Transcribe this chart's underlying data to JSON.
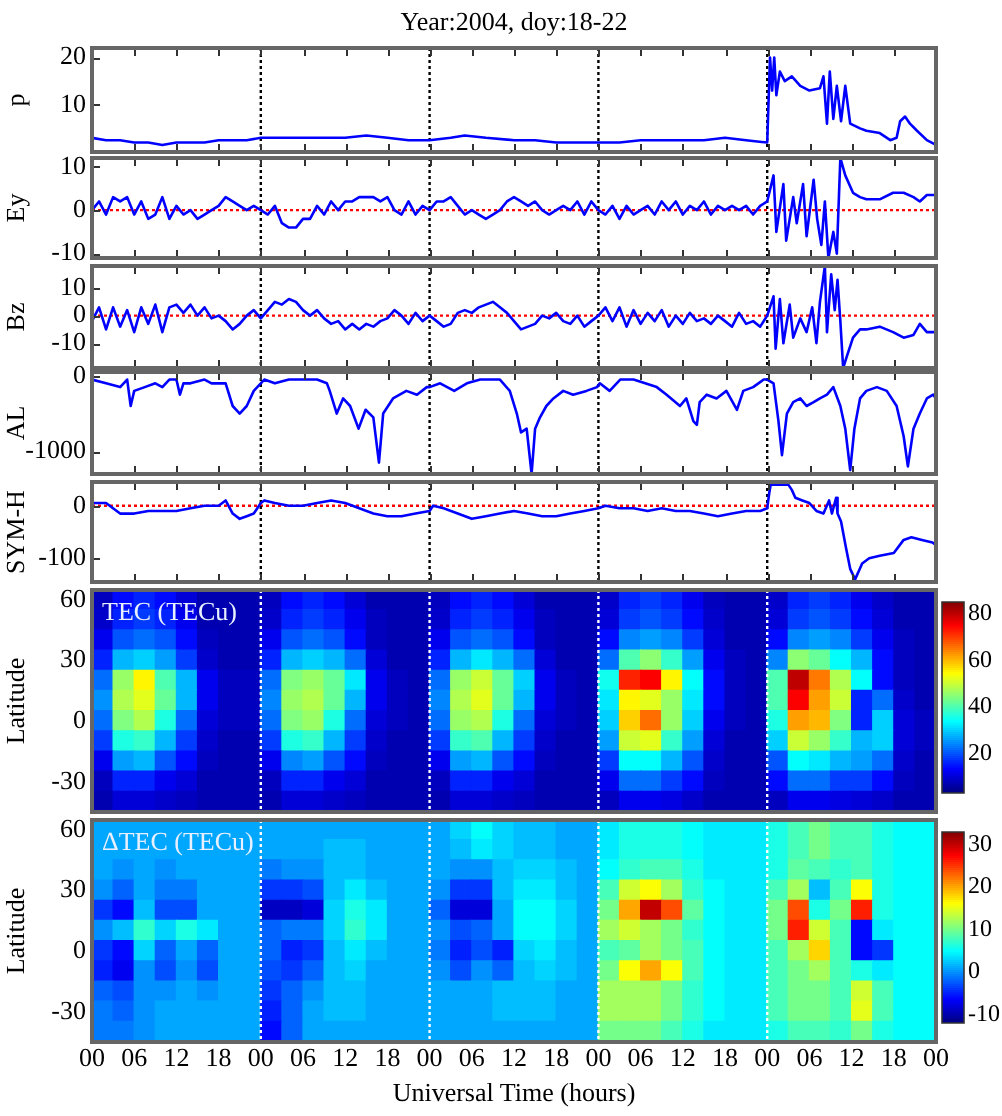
{
  "chart_data": [
    {
      "type": "line",
      "title": "Year:2004, doy:18-22",
      "ylabel": "p",
      "color": "#0000ff",
      "xlim": [
        0,
        120
      ],
      "xticks": [
        0,
        6,
        12,
        18,
        24,
        30,
        36,
        42,
        48,
        54,
        60,
        66,
        72,
        78,
        84,
        90,
        96,
        102,
        108,
        114,
        120
      ],
      "ylim": [
        0,
        22
      ],
      "yticks": [
        10,
        20
      ],
      "tick_labels": "y",
      "x": [
        0,
        2,
        4,
        6,
        8,
        10,
        12,
        14,
        16,
        18,
        20,
        22,
        24,
        27,
        30,
        33,
        36,
        39,
        42,
        45,
        48,
        51,
        53,
        56,
        60,
        63,
        66,
        69,
        72,
        75,
        78,
        81,
        84,
        87,
        90,
        93,
        96,
        96.4,
        96.7,
        97,
        97.3,
        97.8,
        98.5,
        99.5,
        100.7,
        102,
        103.5,
        104,
        104.5,
        104.9,
        105.4,
        105.9,
        106.5,
        107.1,
        107.8,
        109.2,
        110.1,
        112,
        113.5,
        114.4,
        114.9,
        115.6,
        116.3,
        117.3,
        118.7,
        120
      ],
      "values": [
        3,
        2.5,
        2.5,
        2,
        2,
        1.5,
        2,
        2,
        2,
        2.5,
        2.5,
        2.5,
        3,
        3,
        3,
        3,
        3,
        3.5,
        3,
        2.5,
        2.5,
        3,
        3.5,
        3,
        2.5,
        2.5,
        2,
        2,
        2,
        2,
        2.5,
        2.5,
        2.5,
        2.5,
        3,
        2.5,
        2,
        20,
        13,
        20,
        12,
        17,
        15,
        16,
        14,
        13,
        13.5,
        16,
        6,
        17,
        7,
        14,
        6.5,
        14,
        6,
        5,
        4.5,
        4,
        2.5,
        3,
        6.5,
        7.5,
        6,
        4.5,
        2.5,
        1.5
      ],
      "ref_lines": [
        {
          "axis": "x",
          "value": 24,
          "color": "#000000",
          "line_style": "dotted"
        },
        {
          "axis": "x",
          "value": 48,
          "color": "#000000",
          "line_style": "dotted"
        },
        {
          "axis": "x",
          "value": 72,
          "color": "#000000",
          "line_style": "dotted"
        },
        {
          "axis": "x",
          "value": 96,
          "color": "#000000",
          "line_style": "dotted"
        }
      ]
    },
    {
      "type": "line",
      "ylabel": "Ey",
      "color": "#0000ff",
      "xlim": [
        0,
        120
      ],
      "xticks": [
        0,
        6,
        12,
        18,
        24,
        30,
        36,
        42,
        48,
        54,
        60,
        66,
        72,
        78,
        84,
        90,
        96,
        102,
        108,
        114,
        120
      ],
      "ylim": [
        -11,
        12
      ],
      "yticks": [
        -10,
        0,
        10
      ],
      "tick_labels": "y",
      "x": [
        0,
        1,
        2,
        3,
        4,
        5,
        6,
        7,
        8,
        9,
        10,
        11,
        12,
        13,
        14,
        15,
        16,
        17,
        18,
        19,
        20,
        21,
        22,
        23,
        24,
        25,
        26,
        27,
        28,
        29,
        30,
        31,
        32,
        33,
        34,
        35,
        36,
        37,
        38,
        39,
        40,
        41,
        42,
        43,
        44,
        45,
        46,
        47,
        48,
        49,
        50,
        51,
        52,
        53,
        54,
        55,
        56,
        57,
        58,
        59,
        60,
        61,
        62,
        63,
        64,
        65,
        66,
        67,
        68,
        69,
        70,
        71,
        72,
        73,
        74,
        75,
        76,
        77,
        78,
        79,
        80,
        81,
        82,
        83,
        84,
        85,
        86,
        87,
        88,
        89,
        90,
        91,
        92,
        93,
        94,
        95,
        96,
        96.9,
        97.3,
        98.3,
        98.7,
        99.7,
        100.2,
        101.1,
        101.6,
        102.6,
        103.1,
        103.7,
        104.2,
        104.7,
        105.4,
        105.9,
        106.4,
        107.1,
        108.2,
        109.2,
        110.1,
        112,
        113.9,
        115.4,
        116.8,
        117.7,
        118.7,
        119.6,
        120
      ],
      "values": [
        0,
        2,
        -1,
        3,
        2,
        3,
        -1,
        2,
        -2,
        -1,
        3,
        -2,
        1,
        -1,
        0,
        -2,
        -1,
        0,
        1,
        3,
        2,
        1,
        0,
        1,
        0,
        -1,
        1,
        -3,
        -4,
        -4,
        -2,
        -2,
        1,
        -1,
        2,
        0,
        2,
        2,
        3,
        3,
        3,
        2,
        3,
        0,
        -1,
        2,
        -1,
        1,
        0,
        2,
        2,
        3,
        1,
        -1,
        0,
        -1,
        -2,
        -1,
        0,
        2,
        3,
        2,
        1,
        2,
        0,
        -1,
        0,
        1,
        0,
        2,
        -1,
        2,
        0,
        -1,
        1,
        -2,
        1,
        -1,
        0,
        1,
        -1,
        2,
        0,
        2,
        -1,
        1,
        0,
        2,
        -1,
        1,
        0,
        1,
        0,
        1,
        -1,
        1,
        2,
        8,
        -5,
        6,
        -7,
        3,
        -3,
        6,
        -6,
        7,
        -2,
        -8,
        2,
        -11,
        -5,
        -10,
        12,
        8,
        4,
        3,
        2.5,
        2.5,
        4,
        4,
        3,
        2,
        3.5,
        3.5,
        3.5
      ],
      "ref_lines": [
        {
          "axis": "y",
          "value": 0,
          "color": "#ff0000",
          "line_style": "dotted"
        },
        {
          "axis": "x",
          "value": 24,
          "color": "#000000",
          "line_style": "dotted"
        },
        {
          "axis": "x",
          "value": 48,
          "color": "#000000",
          "line_style": "dotted"
        },
        {
          "axis": "x",
          "value": 72,
          "color": "#000000",
          "line_style": "dotted"
        },
        {
          "axis": "x",
          "value": 96,
          "color": "#000000",
          "line_style": "dotted"
        }
      ]
    },
    {
      "type": "line",
      "ylabel": "Bz",
      "color": "#0000ff",
      "xlim": [
        0,
        120
      ],
      "xticks": [
        0,
        6,
        12,
        18,
        24,
        30,
        36,
        42,
        48,
        54,
        60,
        66,
        72,
        78,
        84,
        90,
        96,
        102,
        108,
        114,
        120
      ],
      "ylim": [
        -19,
        18
      ],
      "yticks": [
        -10,
        0,
        10
      ],
      "tick_labels": "y",
      "x": [
        0,
        1,
        2,
        3,
        4,
        5,
        6,
        7,
        8,
        9,
        10,
        11,
        12,
        13,
        14,
        15,
        16,
        17,
        18,
        19,
        20,
        21,
        22,
        23,
        24,
        25,
        26,
        27,
        28,
        29,
        30,
        31,
        32,
        33,
        34,
        35,
        36,
        37,
        38,
        39,
        40,
        41,
        42,
        43,
        44,
        45,
        46,
        47,
        48,
        49,
        50,
        51,
        52,
        53,
        54,
        55,
        56,
        57,
        58,
        59,
        60,
        61,
        62,
        63,
        64,
        65,
        66,
        67,
        68,
        69,
        70,
        71,
        72,
        73,
        74,
        75,
        76,
        77,
        78,
        79,
        80,
        81,
        82,
        83,
        84,
        85,
        86,
        87,
        88,
        89,
        90,
        91,
        92,
        93,
        94,
        95,
        96,
        96.9,
        97.2,
        97.8,
        98.3,
        99.2,
        99.7,
        100.7,
        101.6,
        102.4,
        103,
        103.5,
        104.2,
        104.5,
        105.1,
        105.6,
        106,
        106.4,
        106.8,
        107.3,
        108.2,
        109.2,
        110.1,
        112,
        113.9,
        115.4,
        116.8,
        117.7,
        118.7,
        119.6,
        120
      ],
      "values": [
        -2,
        3,
        -5,
        3,
        -4,
        2,
        -6,
        3,
        -3,
        4,
        -6,
        3,
        4,
        1,
        4,
        0,
        3,
        -1,
        0,
        -2,
        -5,
        -3,
        0,
        2,
        -1,
        2,
        5,
        4,
        6,
        5,
        2,
        0,
        2,
        -1,
        -3,
        -2,
        -5,
        -3,
        -5,
        -3,
        -4,
        -2,
        -1,
        2,
        0,
        -3,
        1,
        -2,
        0,
        -2,
        -4,
        -3,
        1,
        2,
        1,
        3,
        4,
        5,
        3,
        1,
        -2,
        -5,
        -4,
        -3,
        0,
        -1,
        1,
        -2,
        -3,
        0,
        -4,
        -2,
        0,
        3,
        -2,
        3,
        -4,
        2,
        -3,
        1,
        -2,
        2,
        -4,
        0,
        -3,
        1,
        -2,
        -1,
        -3,
        0,
        -2,
        -4,
        1,
        -3,
        -2,
        -4,
        0,
        7,
        -12,
        6,
        -10,
        4,
        -8,
        -1,
        -6,
        3,
        -10,
        5,
        18,
        -6,
        15,
        2,
        13,
        -2,
        -19,
        -15,
        -8,
        -5,
        -5,
        -4,
        -6,
        -8,
        -7,
        -3,
        -6,
        -6,
        -6
      ],
      "ref_lines": [
        {
          "axis": "y",
          "value": 0,
          "color": "#ff0000",
          "line_style": "dotted"
        },
        {
          "axis": "x",
          "value": 24,
          "color": "#000000",
          "line_style": "dotted"
        },
        {
          "axis": "x",
          "value": 48,
          "color": "#000000",
          "line_style": "dotted"
        },
        {
          "axis": "x",
          "value": 72,
          "color": "#000000",
          "line_style": "dotted"
        },
        {
          "axis": "x",
          "value": 96,
          "color": "#000000",
          "line_style": "dotted"
        }
      ]
    },
    {
      "type": "line",
      "ylabel": "AL",
      "color": "#0000ff",
      "xlim": [
        0,
        120
      ],
      "xticks": [
        0,
        6,
        12,
        18,
        24,
        30,
        36,
        42,
        48,
        54,
        60,
        66,
        72,
        78,
        84,
        90,
        96,
        102,
        108,
        114,
        120
      ],
      "ylim": [
        -1300,
        50
      ],
      "yticks": [
        -1000,
        0
      ],
      "tick_labels": "y",
      "x": [
        0,
        2,
        4,
        5,
        5.5,
        6,
        7.5,
        9,
        10,
        11,
        12,
        12.5,
        13,
        14,
        16,
        17,
        19,
        20,
        21,
        22,
        23,
        24,
        24.5,
        26,
        28,
        30,
        32,
        33.4,
        33.8,
        34.8,
        35.7,
        36.7,
        37.9,
        38.9,
        40,
        40.8,
        41.4,
        42.8,
        44.7,
        46.2,
        47.6,
        48,
        49.5,
        51.5,
        53.3,
        55.2,
        58,
        59.4,
        60.4,
        61,
        61.8,
        62.5,
        63,
        63.7,
        64.6,
        65.6,
        67,
        68.4,
        70.3,
        71.8,
        72.2,
        73.6,
        75.1,
        77,
        80.3,
        81.7,
        83.6,
        84.5,
        85.5,
        86,
        86.4,
        87.4,
        88.8,
        90.2,
        91.7,
        92.6,
        94,
        95.5,
        96,
        96.9,
        97.6,
        98.1,
        98.8,
        99.7,
        100.7,
        101.6,
        102.6,
        103.5,
        104.5,
        105.4,
        106.4,
        107.1,
        107.8,
        108.4,
        109.2,
        110.1,
        111.6,
        113,
        114.4,
        115.4,
        116,
        116.8,
        117.7,
        118.7,
        119.6,
        120
      ],
      "values": [
        -50,
        -100,
        -150,
        -50,
        -400,
        -200,
        -150,
        -100,
        -150,
        -50,
        -50,
        -250,
        -100,
        -100,
        -50,
        -100,
        -100,
        -400,
        -500,
        -400,
        -200,
        -100,
        -50,
        -100,
        -50,
        -50,
        -50,
        -100,
        -200,
        -500,
        -300,
        -400,
        -700,
        -450,
        -550,
        -1150,
        -500,
        -300,
        -200,
        -250,
        -150,
        -150,
        -100,
        -200,
        -100,
        -50,
        -50,
        -200,
        -500,
        -750,
        -700,
        -1300,
        -700,
        -550,
        -400,
        -300,
        -200,
        -250,
        -200,
        -150,
        -100,
        -200,
        -50,
        -50,
        -150,
        -250,
        -400,
        -300,
        -600,
        -650,
        -350,
        -250,
        -300,
        -200,
        -450,
        -200,
        -150,
        -50,
        -50,
        -100,
        -600,
        -1050,
        -500,
        -350,
        -300,
        -400,
        -350,
        -300,
        -250,
        -150,
        -400,
        -700,
        -1250,
        -700,
        -300,
        -200,
        -150,
        -200,
        -400,
        -800,
        -1200,
        -700,
        -500,
        -300,
        -250,
        -300
      ],
      "ref_lines": [
        {
          "axis": "x",
          "value": 24,
          "color": "#000000",
          "line_style": "dotted"
        },
        {
          "axis": "x",
          "value": 48,
          "color": "#000000",
          "line_style": "dotted"
        },
        {
          "axis": "x",
          "value": 72,
          "color": "#000000",
          "line_style": "dotted"
        },
        {
          "axis": "x",
          "value": 96,
          "color": "#000000",
          "line_style": "dotted"
        }
      ]
    },
    {
      "type": "line",
      "ylabel": "SYM-H",
      "color": "#0000ff",
      "xlim": [
        0,
        120
      ],
      "xticks": [
        0,
        6,
        12,
        18,
        24,
        30,
        36,
        42,
        48,
        54,
        60,
        66,
        72,
        78,
        84,
        90,
        96,
        102,
        108,
        114,
        120
      ],
      "ylim": [
        -145,
        45
      ],
      "yticks": [
        -100,
        0
      ],
      "tick_labels": "y",
      "x": [
        0,
        2,
        4,
        6,
        8,
        10,
        12,
        14,
        16,
        18,
        19,
        20,
        21,
        22,
        23,
        24,
        24.5,
        26,
        28,
        30,
        32,
        34,
        36,
        38,
        40,
        42,
        44,
        46,
        48,
        48.5,
        50,
        52,
        54,
        56,
        58,
        60,
        62,
        64,
        66,
        68,
        70,
        72,
        73,
        75,
        77,
        79,
        81,
        83,
        85,
        87,
        89,
        91,
        93,
        95,
        96,
        96.3,
        96.5,
        99,
        99.5,
        100,
        101,
        102,
        103,
        104,
        104.8,
        105.2,
        105.8,
        106,
        106.5,
        107.2,
        107.8,
        108.5,
        109.5,
        110.5,
        112,
        114,
        115.4,
        116.5,
        118,
        119.5,
        120
      ],
      "values": [
        5,
        5,
        -15,
        -15,
        -10,
        -10,
        -10,
        -5,
        0,
        0,
        10,
        -15,
        -25,
        -20,
        -15,
        5,
        10,
        5,
        0,
        0,
        5,
        10,
        5,
        -5,
        -15,
        -20,
        -20,
        -15,
        -10,
        0,
        -5,
        -15,
        -25,
        -20,
        -15,
        -10,
        -15,
        -20,
        -20,
        -15,
        -10,
        -5,
        0,
        -5,
        -5,
        -10,
        -5,
        -10,
        -10,
        -15,
        -20,
        -15,
        -10,
        -10,
        -5,
        25,
        40,
        40,
        30,
        15,
        10,
        5,
        -10,
        -15,
        10,
        -15,
        15,
        -15,
        -30,
        -80,
        -120,
        -140,
        -110,
        -100,
        -95,
        -90,
        -65,
        -60,
        -65,
        -70,
        -75
      ],
      "ref_lines": [
        {
          "axis": "y",
          "value": 0,
          "color": "#ff0000",
          "line_style": "dotted"
        },
        {
          "axis": "x",
          "value": 24,
          "color": "#000000",
          "line_style": "dotted"
        },
        {
          "axis": "x",
          "value": 48,
          "color": "#000000",
          "line_style": "dotted"
        },
        {
          "axis": "x",
          "value": 72,
          "color": "#000000",
          "line_style": "dotted"
        },
        {
          "axis": "x",
          "value": 96,
          "color": "#000000",
          "line_style": "dotted"
        }
      ]
    },
    {
      "type": "heatmap",
      "ylabel": "Latitude",
      "annotations": [
        "TEC (TECu)"
      ],
      "xlim": [
        0,
        120
      ],
      "tick_labels": "y",
      "clim": [
        3,
        85
      ],
      "cticks": [
        20,
        40,
        60,
        80
      ],
      "x": [
        1.5,
        4.5,
        7.5,
        10.5,
        13.5,
        16.5,
        19.5,
        22.5,
        25.5,
        28.5,
        31.5,
        34.5,
        37.5,
        40.5,
        43.5,
        46.5,
        49.5,
        52.5,
        55.5,
        58.5,
        61.5,
        64.5,
        67.5,
        70.5,
        73.5,
        76.5,
        79.5,
        82.5,
        85.5,
        88.5,
        91.5,
        94.5,
        97.5,
        100.5,
        103.5,
        106.5,
        109.5,
        112.5,
        115.5,
        118.5
      ],
      "y_categories": [
        "60",
        null,
        null,
        "30",
        null,
        null,
        "0",
        null,
        null,
        "-30",
        null
      ],
      "cells": [
        [
          8,
          14,
          16,
          14,
          10,
          7,
          7,
          7,
          8,
          14,
          16,
          14,
          10,
          7,
          7,
          7,
          8,
          14,
          16,
          14,
          10,
          7,
          7,
          7,
          9,
          16,
          18,
          16,
          12,
          8,
          7,
          7,
          9,
          16,
          18,
          16,
          12,
          9,
          7,
          7
        ],
        [
          9,
          16,
          18,
          16,
          12,
          7,
          7,
          7,
          9,
          16,
          18,
          16,
          12,
          8,
          7,
          7,
          9,
          16,
          18,
          16,
          12,
          8,
          7,
          7,
          10,
          18,
          20,
          18,
          14,
          9,
          7,
          7,
          10,
          18,
          20,
          18,
          14,
          10,
          7,
          7
        ],
        [
          12,
          20,
          22,
          20,
          14,
          8,
          7,
          7,
          12,
          20,
          22,
          20,
          14,
          8,
          7,
          7,
          12,
          20,
          22,
          20,
          14,
          8,
          7,
          7,
          14,
          24,
          26,
          24,
          18,
          10,
          7,
          7,
          14,
          24,
          26,
          24,
          18,
          12,
          8,
          7
        ],
        [
          16,
          28,
          30,
          26,
          18,
          9,
          7,
          7,
          16,
          28,
          30,
          28,
          22,
          10,
          7,
          7,
          16,
          28,
          32,
          28,
          22,
          10,
          7,
          7,
          22,
          40,
          45,
          38,
          26,
          12,
          8,
          7,
          24,
          45,
          42,
          34,
          28,
          14,
          8,
          7
        ],
        [
          22,
          46,
          55,
          40,
          28,
          12,
          8,
          8,
          22,
          44,
          46,
          42,
          32,
          12,
          8,
          7,
          22,
          46,
          50,
          42,
          30,
          12,
          8,
          7,
          35,
          72,
          75,
          55,
          34,
          14,
          8,
          7,
          40,
          80,
          65,
          48,
          34,
          14,
          8,
          7
        ],
        [
          25,
          48,
          52,
          42,
          28,
          12,
          8,
          8,
          24,
          46,
          48,
          42,
          28,
          12,
          8,
          7,
          24,
          48,
          52,
          42,
          28,
          12,
          8,
          7,
          32,
          55,
          52,
          46,
          32,
          14,
          8,
          7,
          40,
          75,
          62,
          50,
          16,
          22,
          9,
          7
        ],
        [
          22,
          44,
          48,
          36,
          22,
          10,
          8,
          8,
          22,
          44,
          46,
          36,
          22,
          10,
          8,
          7,
          22,
          46,
          48,
          36,
          22,
          10,
          8,
          7,
          30,
          58,
          66,
          46,
          30,
          12,
          8,
          7,
          36,
          62,
          60,
          44,
          16,
          30,
          10,
          8
        ],
        [
          18,
          36,
          38,
          28,
          18,
          9,
          7,
          7,
          18,
          36,
          38,
          28,
          18,
          9,
          7,
          7,
          18,
          38,
          40,
          28,
          18,
          9,
          7,
          7,
          26,
          50,
          52,
          38,
          26,
          10,
          7,
          7,
          30,
          50,
          46,
          38,
          28,
          30,
          10,
          8
        ],
        [
          12,
          26,
          28,
          20,
          14,
          8,
          7,
          7,
          12,
          24,
          26,
          20,
          14,
          8,
          7,
          7,
          12,
          26,
          28,
          20,
          14,
          8,
          7,
          7,
          18,
          34,
          34,
          28,
          20,
          9,
          7,
          7,
          20,
          34,
          32,
          28,
          26,
          22,
          9,
          7
        ],
        [
          8,
          16,
          16,
          12,
          10,
          7,
          7,
          7,
          8,
          16,
          16,
          12,
          10,
          7,
          7,
          7,
          8,
          16,
          16,
          12,
          10,
          7,
          7,
          7,
          12,
          22,
          22,
          18,
          14,
          8,
          7,
          7,
          14,
          22,
          22,
          18,
          18,
          14,
          8,
          7
        ],
        [
          7,
          10,
          10,
          9,
          8,
          7,
          7,
          7,
          7,
          10,
          10,
          9,
          8,
          7,
          7,
          7,
          7,
          10,
          10,
          9,
          8,
          7,
          7,
          7,
          8,
          12,
          12,
          11,
          9,
          7,
          7,
          7,
          8,
          12,
          12,
          11,
          10,
          9,
          7,
          7
        ]
      ],
      "ref_lines": [
        {
          "axis": "x",
          "value": 24,
          "color": "#ffffff",
          "line_style": "dotted"
        },
        {
          "axis": "x",
          "value": 48,
          "color": "#ffffff",
          "line_style": "dotted"
        },
        {
          "axis": "x",
          "value": 72,
          "color": "#ffffff",
          "line_style": "dotted"
        },
        {
          "axis": "x",
          "value": 96,
          "color": "#ffffff",
          "line_style": "dotted"
        }
      ]
    },
    {
      "type": "heatmap",
      "ylabel": "Latitude",
      "xlabel": "Universal Time (hours)",
      "annotations": [
        "ΔTEC (TECu)"
      ],
      "xlim": [
        0,
        120
      ],
      "xticks": [
        {
          "value": 0,
          "label": "00"
        },
        {
          "value": 6,
          "label": "06"
        },
        {
          "value": 12,
          "label": "12"
        },
        {
          "value": 18,
          "label": "18"
        },
        {
          "value": 24,
          "label": "00"
        },
        {
          "value": 30,
          "label": "06"
        },
        {
          "value": 36,
          "label": "12"
        },
        {
          "value": 42,
          "label": "18"
        },
        {
          "value": 48,
          "label": "00"
        },
        {
          "value": 54,
          "label": "06"
        },
        {
          "value": 60,
          "label": "12"
        },
        {
          "value": 66,
          "label": "18"
        },
        {
          "value": 72,
          "label": "00"
        },
        {
          "value": 78,
          "label": "06"
        },
        {
          "value": 84,
          "label": "12"
        },
        {
          "value": 90,
          "label": "18"
        },
        {
          "value": 96,
          "label": "00"
        },
        {
          "value": 102,
          "label": "06"
        },
        {
          "value": 108,
          "label": "12"
        },
        {
          "value": 114,
          "label": "18"
        },
        {
          "value": 120,
          "label": "00"
        }
      ],
      "clim": [
        -12,
        33
      ],
      "cticks": [
        -10,
        0,
        10,
        20,
        30
      ],
      "x": [
        1.5,
        4.5,
        7.5,
        10.5,
        13.5,
        16.5,
        19.5,
        22.5,
        25.5,
        28.5,
        31.5,
        34.5,
        37.5,
        40.5,
        43.5,
        46.5,
        49.5,
        52.5,
        55.5,
        58.5,
        61.5,
        64.5,
        67.5,
        70.5,
        73.5,
        76.5,
        79.5,
        82.5,
        85.5,
        88.5,
        91.5,
        94.5,
        97.5,
        100.5,
        103.5,
        106.5,
        109.5,
        112.5,
        115.5,
        118.5
      ],
      "y_categories": [
        "60",
        null,
        null,
        "30",
        null,
        null,
        "0",
        null,
        null,
        "-30",
        null
      ],
      "cells": [
        [
          1,
          1,
          1,
          1,
          1,
          1,
          1,
          1,
          1,
          1,
          1,
          1,
          1,
          1,
          1,
          1,
          1,
          3,
          5,
          3,
          2,
          2,
          1,
          1,
          4,
          6,
          6,
          6,
          5,
          4,
          4,
          4,
          6,
          8,
          10,
          8,
          8,
          6,
          5,
          5
        ],
        [
          1,
          1,
          1,
          1,
          1,
          1,
          1,
          1,
          1,
          1,
          1,
          2,
          2,
          1,
          1,
          1,
          1,
          2,
          4,
          3,
          2,
          2,
          1,
          1,
          4,
          6,
          6,
          6,
          5,
          4,
          4,
          4,
          6,
          8,
          10,
          8,
          8,
          6,
          5,
          5
        ],
        [
          1,
          0,
          1,
          0,
          1,
          1,
          1,
          1,
          -1,
          0,
          0,
          2,
          2,
          1,
          1,
          1,
          1,
          0,
          0,
          2,
          3,
          3,
          2,
          1,
          5,
          7,
          8,
          8,
          6,
          4,
          4,
          4,
          6,
          9,
          8,
          7,
          8,
          6,
          5,
          5
        ],
        [
          0,
          -2,
          1,
          -1,
          -1,
          1,
          1,
          1,
          -4,
          -4,
          -3,
          2,
          4,
          2,
          1,
          1,
          0,
          -4,
          -4,
          2,
          4,
          4,
          2,
          1,
          8,
          14,
          16,
          12,
          7,
          5,
          4,
          4,
          8,
          12,
          2,
          8,
          16,
          6,
          5,
          5
        ],
        [
          -4,
          -6,
          2,
          -3,
          -3,
          1,
          1,
          1,
          -9,
          -9,
          -8,
          3,
          6,
          4,
          1,
          1,
          -2,
          -8,
          -8,
          1,
          5,
          5,
          3,
          1,
          10,
          20,
          30,
          24,
          9,
          5,
          4,
          4,
          10,
          24,
          6,
          10,
          26,
          6,
          5,
          5
        ],
        [
          0,
          2,
          7,
          3,
          6,
          4,
          1,
          1,
          -2,
          -1,
          -1,
          3,
          7,
          4,
          1,
          1,
          0,
          -3,
          -2,
          1,
          5,
          5,
          3,
          1,
          12,
          14,
          12,
          10,
          7,
          5,
          4,
          4,
          10,
          26,
          14,
          8,
          -6,
          4,
          5,
          5
        ],
        [
          -4,
          -6,
          3,
          -2,
          1,
          -2,
          1,
          1,
          -2,
          -5,
          -4,
          2,
          4,
          2,
          1,
          1,
          -1,
          -5,
          -3,
          -5,
          3,
          4,
          2,
          1,
          8,
          9,
          12,
          10,
          8,
          5,
          4,
          4,
          8,
          12,
          18,
          8,
          -6,
          -4,
          5,
          5
        ],
        [
          -5,
          -7,
          0,
          -3,
          0,
          -3,
          1,
          1,
          -3,
          -4,
          -2,
          2,
          3,
          1,
          1,
          1,
          0,
          -3,
          0,
          -2,
          2,
          3,
          2,
          1,
          10,
          16,
          20,
          16,
          8,
          5,
          4,
          4,
          8,
          10,
          12,
          8,
          6,
          4,
          5,
          5
        ],
        [
          -2,
          -3,
          0,
          0,
          1,
          0,
          1,
          1,
          -4,
          -2,
          0,
          2,
          2,
          1,
          1,
          1,
          1,
          1,
          1,
          2,
          2,
          2,
          1,
          1,
          12,
          12,
          12,
          10,
          7,
          5,
          4,
          4,
          8,
          10,
          10,
          8,
          14,
          8,
          5,
          5
        ],
        [
          -1,
          -2,
          0,
          1,
          1,
          1,
          1,
          1,
          -5,
          -2,
          1,
          2,
          2,
          1,
          1,
          1,
          1,
          1,
          1,
          2,
          2,
          2,
          1,
          1,
          12,
          12,
          12,
          10,
          7,
          5,
          4,
          4,
          8,
          10,
          10,
          8,
          15,
          8,
          5,
          5
        ],
        [
          -1,
          -1,
          0,
          1,
          1,
          1,
          1,
          1,
          -6,
          -2,
          1,
          1,
          1,
          1,
          1,
          1,
          1,
          1,
          1,
          1,
          1,
          1,
          1,
          1,
          10,
          10,
          10,
          8,
          6,
          4,
          4,
          4,
          6,
          8,
          8,
          7,
          10,
          6,
          5,
          5
        ]
      ],
      "ref_lines": [
        {
          "axis": "x",
          "value": 24,
          "color": "#ffffff",
          "line_style": "dotted"
        },
        {
          "axis": "x",
          "value": 48,
          "color": "#ffffff",
          "line_style": "dotted"
        },
        {
          "axis": "x",
          "value": 72,
          "color": "#ffffff",
          "line_style": "dotted"
        },
        {
          "axis": "x",
          "value": 96,
          "color": "#ffffff",
          "line_style": "dotted"
        }
      ]
    }
  ]
}
